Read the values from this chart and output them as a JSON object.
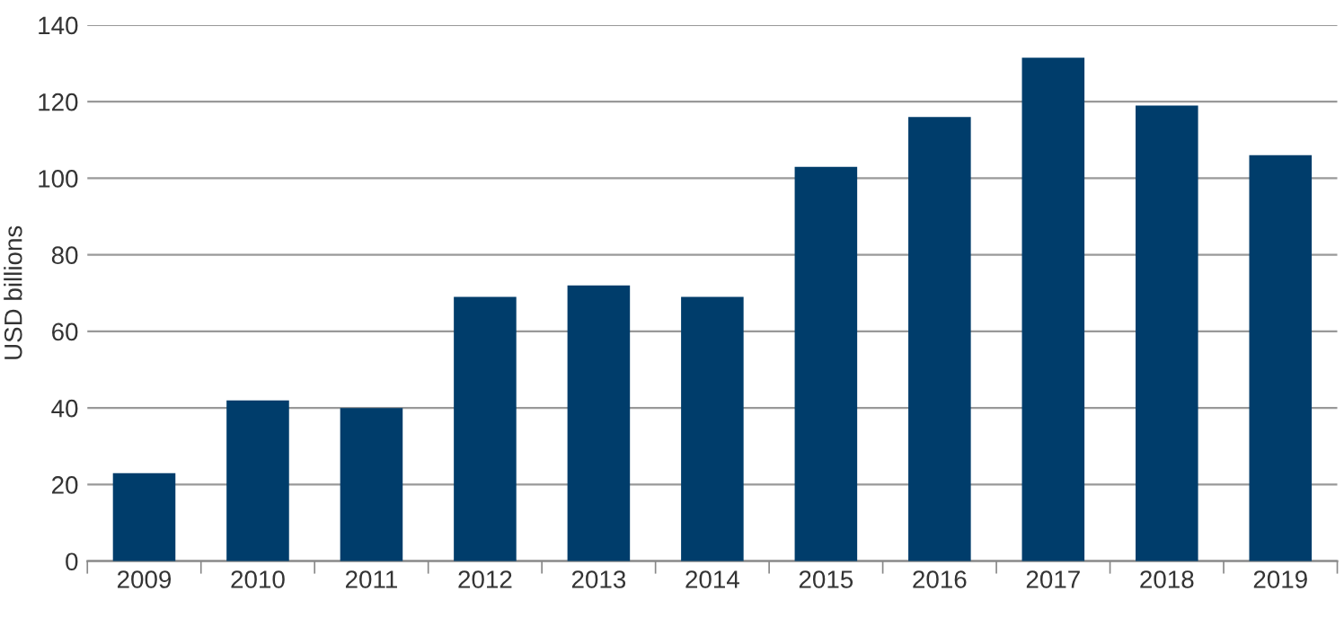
{
  "chart_data": {
    "type": "bar",
    "ylabel": "USD billions",
    "categories": [
      "2009",
      "2010",
      "2011",
      "2012",
      "2013",
      "2014",
      "2015",
      "2016",
      "2017",
      "2018",
      "2019"
    ],
    "values": [
      23,
      42,
      40,
      69,
      72,
      69,
      103,
      116,
      131.5,
      119,
      106
    ],
    "color": "#003d6b",
    "ylim": [
      0,
      140
    ],
    "yticks": [
      0,
      20,
      40,
      60,
      80,
      100,
      120,
      140
    ],
    "grid": "y"
  }
}
